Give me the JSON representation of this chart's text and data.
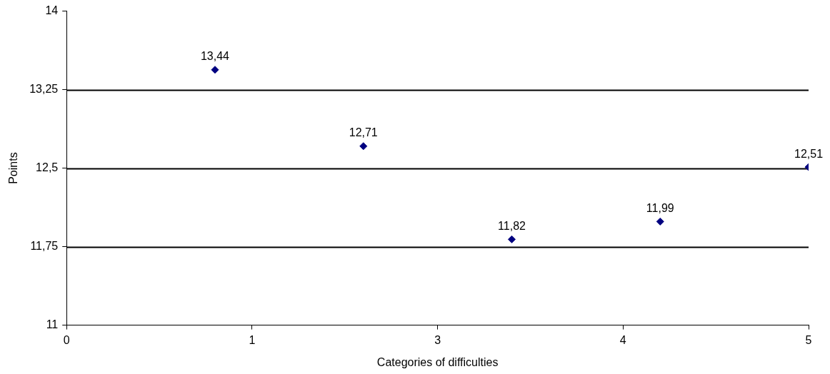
{
  "chart_data": {
    "type": "scatter",
    "xlabel": "Categories of difficulties",
    "ylabel": "Points",
    "x": [
      1,
      2,
      3,
      4,
      5
    ],
    "series": [
      {
        "color": "#000080",
        "values": [
          13.44,
          12.71,
          11.82,
          11.99,
          12.51
        ],
        "value_labels": [
          "13,44",
          "12,71",
          "11,82",
          "11,99",
          "12,51"
        ]
      }
    ],
    "xlim": [
      0,
      5
    ],
    "xticks": [
      0,
      {
        "value": 1.25,
        "label": "1"
      },
      {
        "value": 2.5,
        "label": "3"
      },
      {
        "value": 3.75,
        "label": "4"
      },
      5
    ],
    "ylim": [
      11,
      14
    ],
    "yticks": [
      11,
      {
        "value": 11.75,
        "label": "11,75"
      },
      {
        "value": 12.5,
        "label": "12,5"
      },
      {
        "value": 13.25,
        "label": "13,25"
      },
      14
    ],
    "grid": "y",
    "marker": "diamond",
    "legend": false
  }
}
